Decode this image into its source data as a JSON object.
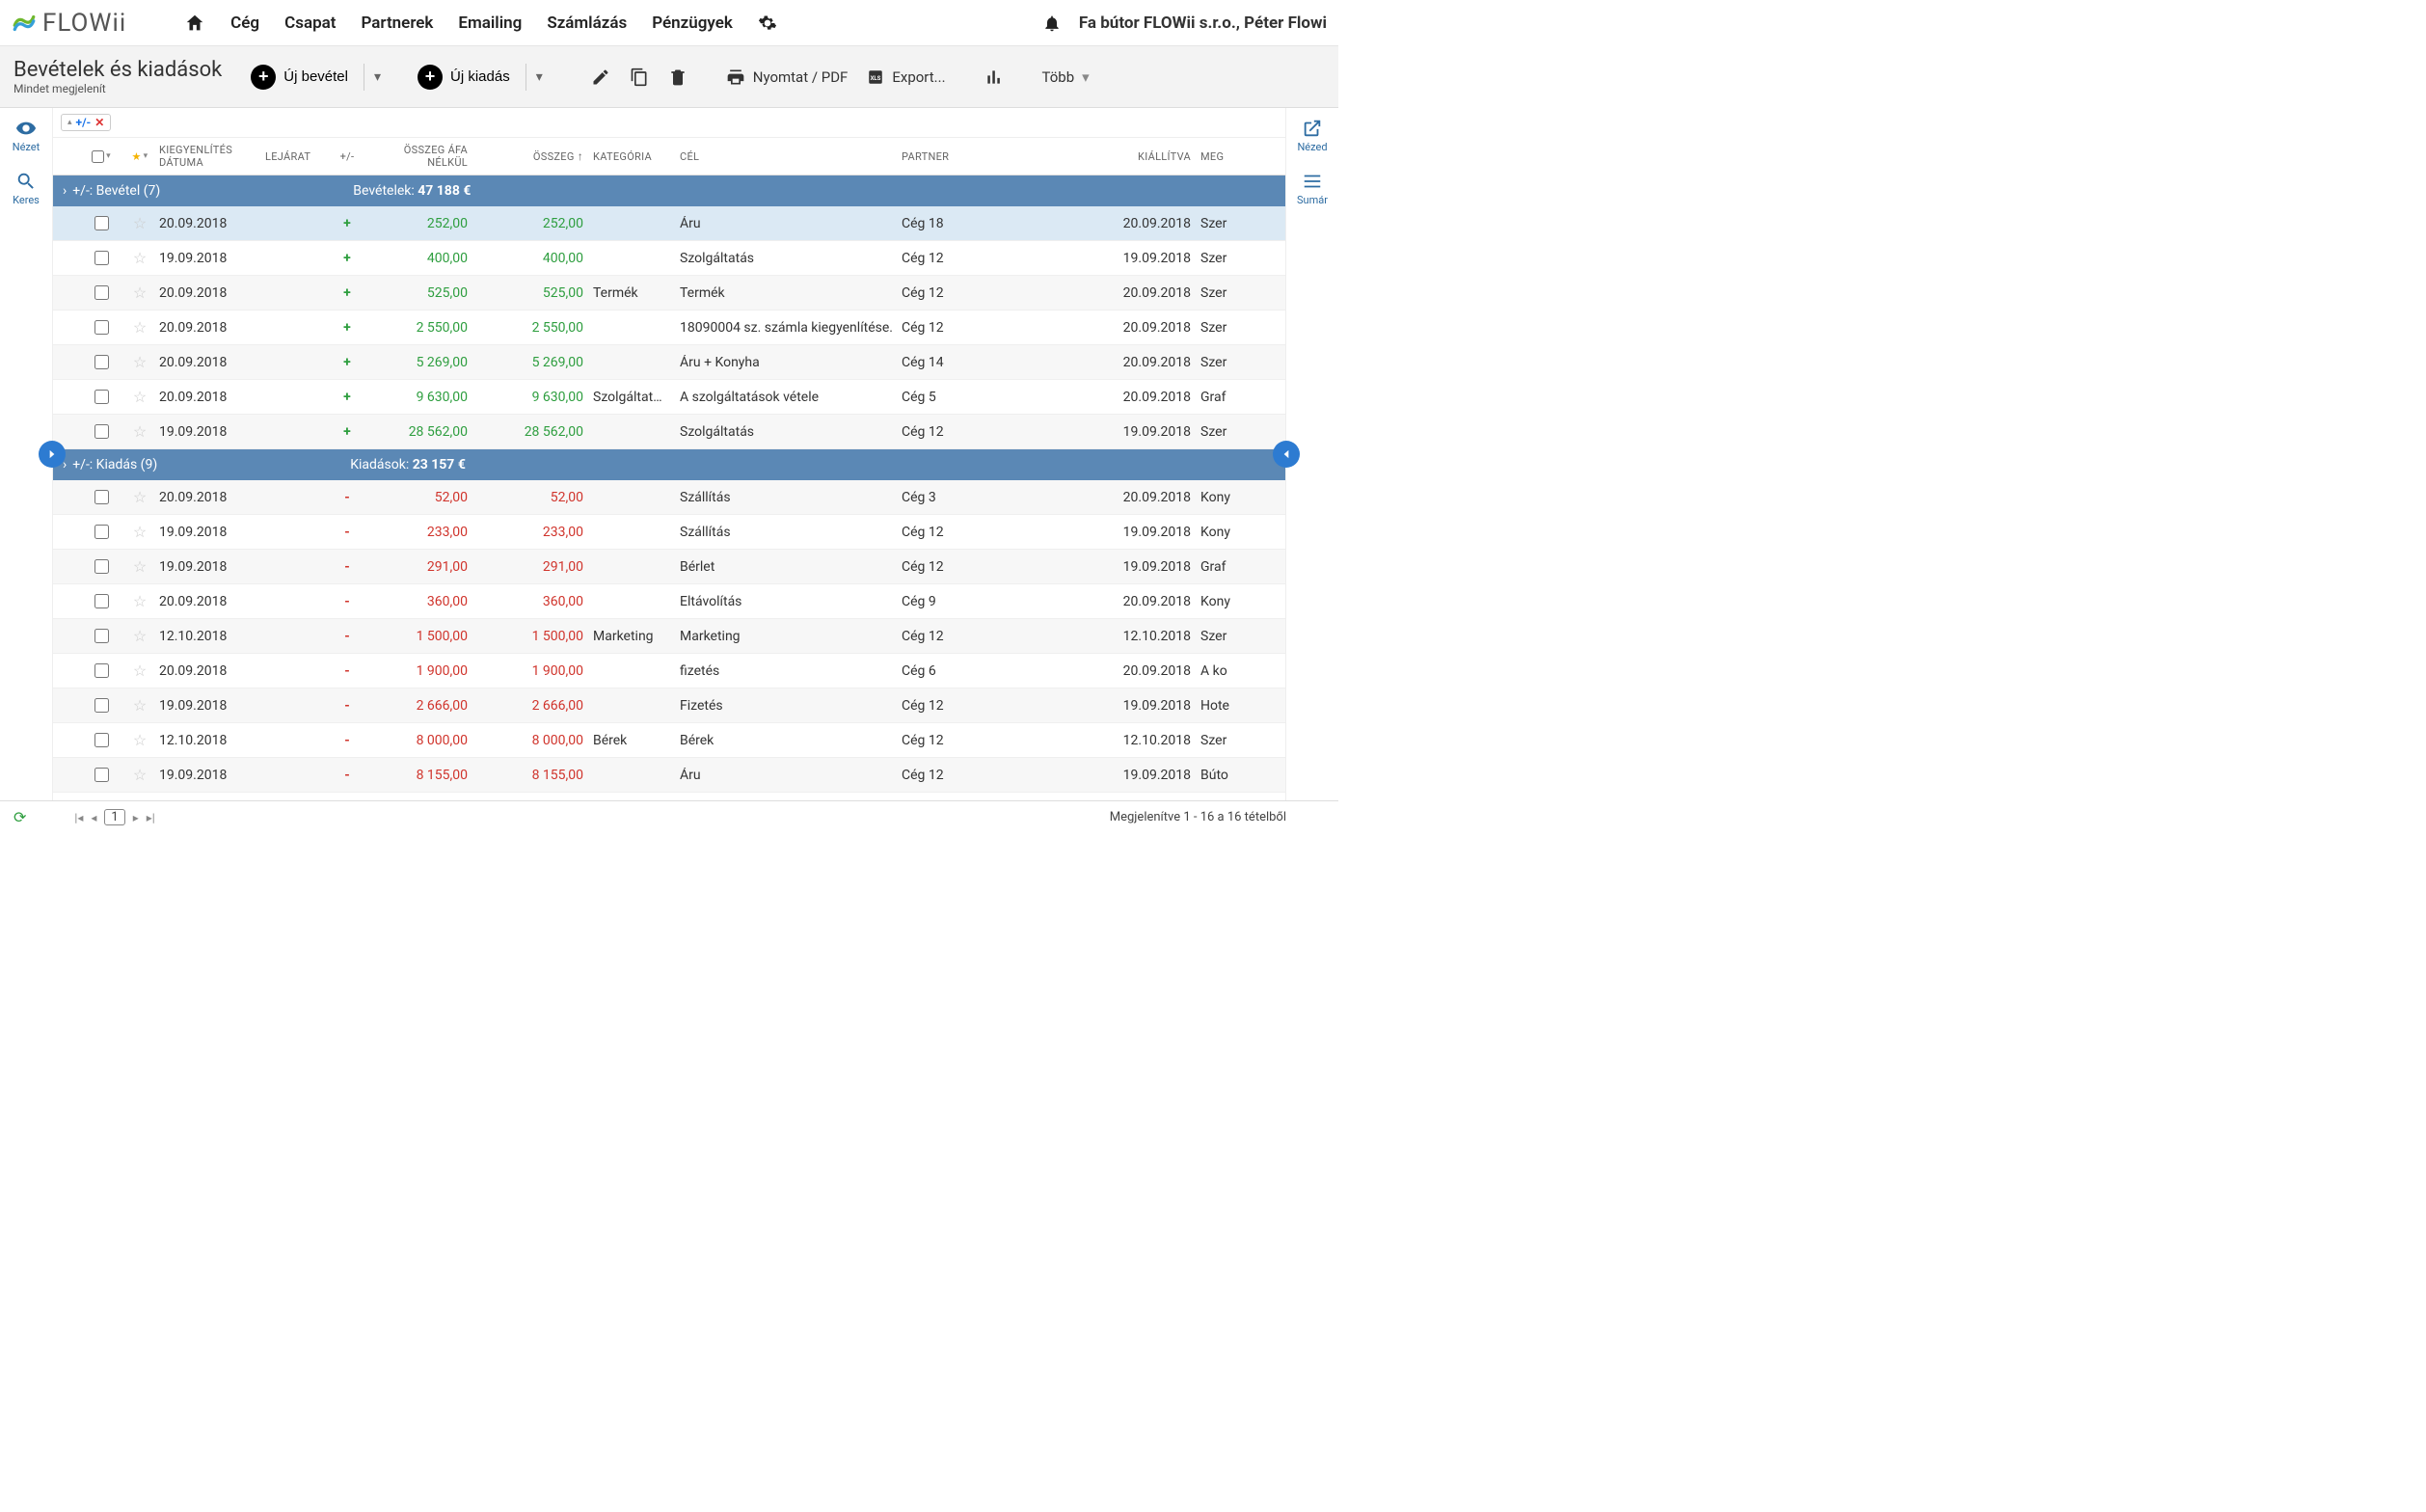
{
  "brand": "FLOWii",
  "nav": [
    "Cég",
    "Csapat",
    "Partnerek",
    "Emailing",
    "Számlázás",
    "Pénzügyek"
  ],
  "account": "Fa bútor FLOWii s.r.o., Péter Flowi",
  "page": {
    "title": "Bevételek és kiadások",
    "subtitle": "Mindet megjelenít"
  },
  "toolbar": {
    "new_income": "Új bevétel",
    "new_expense": "Új kiadás",
    "print": "Nyomtat / PDF",
    "export": "Export...",
    "more": "Több"
  },
  "left_rail": {
    "view": "Nézet",
    "search": "Keres"
  },
  "right_rail": {
    "view": "Nézed",
    "summary": "Sumár"
  },
  "filter_chip": "+/-",
  "columns": {
    "settle_date": "KIEGYENLÍTÉS DÁTUMA",
    "due": "LEJÁRAT",
    "pm": "+/-",
    "net": "ÖSSZEG ÁFA NÉLKÜL",
    "sum": "ÖSSZEG",
    "cat": "KATEGÓRIA",
    "purpose": "CÉL",
    "partner": "PARTNER",
    "issued": "KIÁLLÍTVA",
    "meg": "MEG"
  },
  "groups": [
    {
      "label": "+/-: Bevétel (7)",
      "sum_label": "Bevételek:",
      "sum_value": "47 188 €",
      "sign": "+",
      "rows": [
        {
          "date": "20.09.2018",
          "net": "252,00",
          "sum": "252,00",
          "cat": "",
          "purpose": "Áru",
          "partner": "Cég 18",
          "issued": "20.09.2018",
          "meg": "Szer",
          "selected": true
        },
        {
          "date": "19.09.2018",
          "net": "400,00",
          "sum": "400,00",
          "cat": "",
          "purpose": "Szolgáltatás",
          "partner": "Cég 12",
          "issued": "19.09.2018",
          "meg": "Szer"
        },
        {
          "date": "20.09.2018",
          "net": "525,00",
          "sum": "525,00",
          "cat": "Termék",
          "purpose": "Termék",
          "partner": "Cég 12",
          "issued": "20.09.2018",
          "meg": "Szer"
        },
        {
          "date": "20.09.2018",
          "net": "2 550,00",
          "sum": "2 550,00",
          "cat": "",
          "purpose": "18090004 sz. számla kiegyenlítése.",
          "partner": "Cég 12",
          "issued": "20.09.2018",
          "meg": "Szer"
        },
        {
          "date": "20.09.2018",
          "net": "5 269,00",
          "sum": "5 269,00",
          "cat": "",
          "purpose": "Áru + Konyha",
          "partner": "Cég 14",
          "issued": "20.09.2018",
          "meg": "Szer"
        },
        {
          "date": "20.09.2018",
          "net": "9 630,00",
          "sum": "9 630,00",
          "cat": "Szolgáltat…",
          "purpose": "A szolgáltatások vétele",
          "partner": "Cég 5",
          "issued": "20.09.2018",
          "meg": "Graf"
        },
        {
          "date": "19.09.2018",
          "net": "28 562,00",
          "sum": "28 562,00",
          "cat": "",
          "purpose": "Szolgáltatás",
          "partner": "Cég 12",
          "issued": "19.09.2018",
          "meg": "Szer"
        }
      ]
    },
    {
      "label": "+/-: Kiadás (9)",
      "sum_label": "Kiadások:",
      "sum_value": "23 157 €",
      "sign": "-",
      "rows": [
        {
          "date": "20.09.2018",
          "net": "52,00",
          "sum": "52,00",
          "cat": "",
          "purpose": "Szállítás",
          "partner": "Cég 3",
          "issued": "20.09.2018",
          "meg": "Kony"
        },
        {
          "date": "19.09.2018",
          "net": "233,00",
          "sum": "233,00",
          "cat": "",
          "purpose": "Szállítás",
          "partner": "Cég 12",
          "issued": "19.09.2018",
          "meg": "Kony"
        },
        {
          "date": "19.09.2018",
          "net": "291,00",
          "sum": "291,00",
          "cat": "",
          "purpose": "Bérlet",
          "partner": "Cég 12",
          "issued": "19.09.2018",
          "meg": "Graf"
        },
        {
          "date": "20.09.2018",
          "net": "360,00",
          "sum": "360,00",
          "cat": "",
          "purpose": "Eltávolítás",
          "partner": "Cég 9",
          "issued": "20.09.2018",
          "meg": "Kony"
        },
        {
          "date": "12.10.2018",
          "net": "1 500,00",
          "sum": "1 500,00",
          "cat": "Marketing",
          "purpose": "Marketing",
          "partner": "Cég 12",
          "issued": "12.10.2018",
          "meg": "Szer"
        },
        {
          "date": "20.09.2018",
          "net": "1 900,00",
          "sum": "1 900,00",
          "cat": "",
          "purpose": "fizetés",
          "partner": "Cég 6",
          "issued": "20.09.2018",
          "meg": "A ko"
        },
        {
          "date": "19.09.2018",
          "net": "2 666,00",
          "sum": "2 666,00",
          "cat": "",
          "purpose": "Fizetés",
          "partner": "Cég 12",
          "issued": "19.09.2018",
          "meg": "Hote"
        },
        {
          "date": "12.10.2018",
          "net": "8 000,00",
          "sum": "8 000,00",
          "cat": "Bérek",
          "purpose": "Bérek",
          "partner": "Cég 12",
          "issued": "12.10.2018",
          "meg": "Szer"
        },
        {
          "date": "19.09.2018",
          "net": "8 155,00",
          "sum": "8 155,00",
          "cat": "",
          "purpose": "Áru",
          "partner": "Cég 12",
          "issued": "19.09.2018",
          "meg": "Búto"
        }
      ]
    }
  ],
  "footer": {
    "page": "1",
    "summary": "Megjelenítve 1 - 16 a 16 tételből"
  },
  "colors": {
    "group_header": "#5b88b5",
    "positive": "#2e9e3f",
    "negative": "#d0342c",
    "selected_row": "#dbe9f4",
    "accent": "#2d7bd1"
  }
}
